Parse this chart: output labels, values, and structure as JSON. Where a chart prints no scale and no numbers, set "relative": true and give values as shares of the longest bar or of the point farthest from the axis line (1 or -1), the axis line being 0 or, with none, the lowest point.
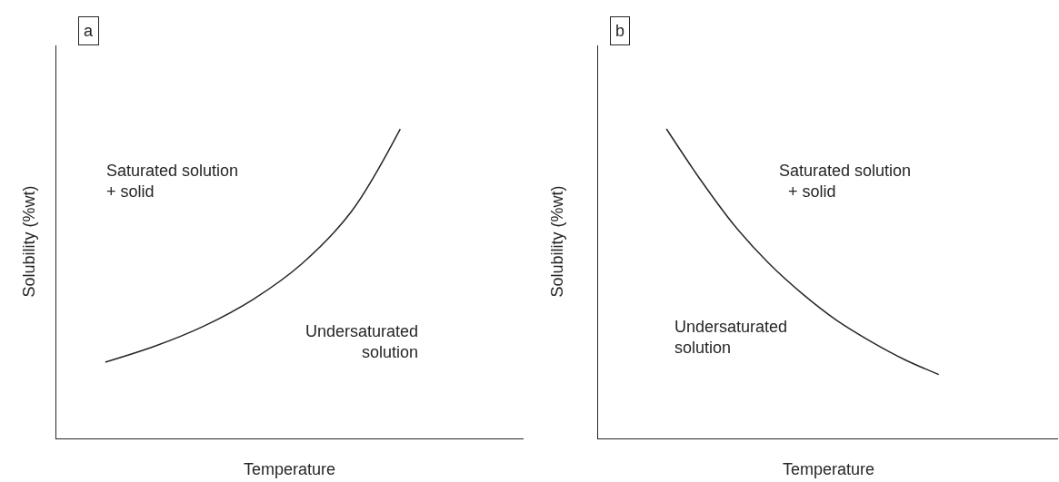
{
  "chart_data": [
    {
      "type": "line",
      "title": "a",
      "xlabel": "Temperature",
      "ylabel": "Solubility (%wt)",
      "relative": true,
      "tick_labels": false,
      "categories": [
        null,
        null,
        null,
        null,
        null,
        null,
        null,
        null,
        null,
        null
      ],
      "series": [
        {
          "color": "#262626",
          "values": [
            null,
            0.247,
            0.298,
            0.363,
            0.449,
            0.565,
            0.732,
            1,
            null,
            null
          ]
        }
      ],
      "annotations": [
        "Saturated solution\n+ solid",
        "Undersaturated\nsolution"
      ]
    },
    {
      "type": "line",
      "title": "b",
      "xlabel": "Temperature",
      "ylabel": "Solubility (%wt)",
      "relative": true,
      "tick_labels": false,
      "categories": [
        null,
        null,
        null,
        null,
        null,
        null,
        null,
        null,
        null,
        null,
        null,
        null,
        null,
        null
      ],
      "series": [
        {
          "color": "#262626",
          "values": [
            null,
            null,
            1,
            0.836,
            0.688,
            0.567,
            0.467,
            0.382,
            0.314,
            0.255,
            0.207,
            null,
            null,
            null
          ]
        }
      ],
      "annotations": [
        "Saturated solution\n  + solid",
        "Undersaturated\nsolution"
      ]
    }
  ]
}
